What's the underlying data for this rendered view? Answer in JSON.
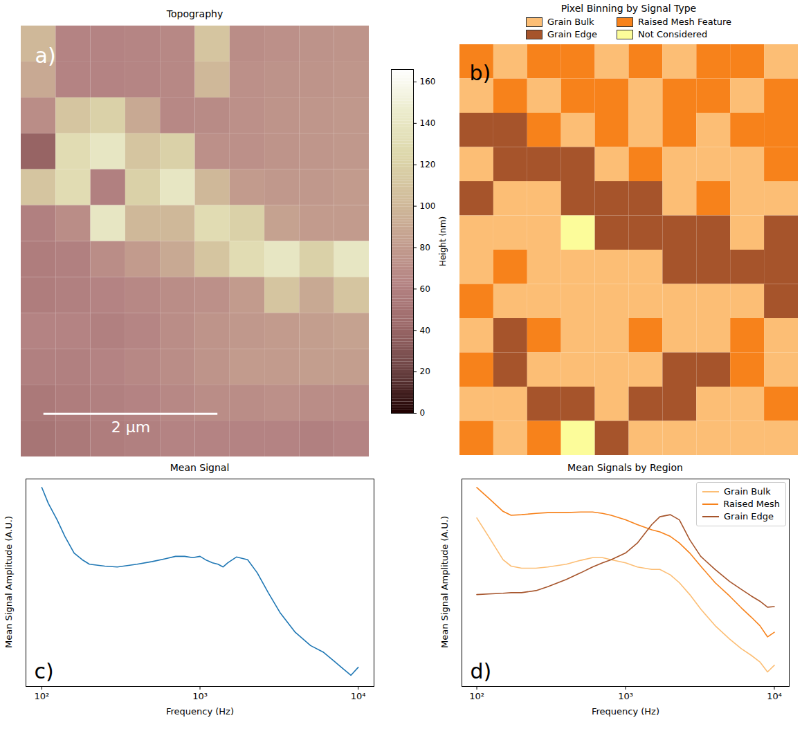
{
  "chart_data": [
    {
      "type": "heatmap",
      "panel_label": "a)",
      "title": "Topography",
      "xlim": [
        0,
        4
      ],
      "ylim": [
        0,
        5
      ],
      "tick_labels": false,
      "cells": [
        [
          100,
          62,
          62,
          64,
          66,
          110,
          70,
          72,
          74,
          75
        ],
        [
          90,
          62,
          62,
          64,
          66,
          100,
          72,
          74,
          75,
          76
        ],
        [
          70,
          110,
          120,
          90,
          66,
          68,
          72,
          75,
          76,
          78
        ],
        [
          40,
          130,
          140,
          110,
          120,
          72,
          72,
          75,
          76,
          78
        ],
        [
          110,
          130,
          60,
          120,
          140,
          100,
          80,
          78,
          78,
          80
        ],
        [
          60,
          70,
          140,
          100,
          100,
          130,
          120,
          85,
          80,
          80
        ],
        [
          58,
          60,
          70,
          80,
          90,
          110,
          130,
          140,
          120,
          140
        ],
        [
          58,
          60,
          62,
          66,
          70,
          72,
          80,
          110,
          90,
          110
        ],
        [
          62,
          62,
          60,
          64,
          70,
          75,
          78,
          80,
          82,
          85
        ],
        [
          60,
          60,
          62,
          66,
          70,
          75,
          80,
          80,
          82,
          82
        ],
        [
          55,
          58,
          60,
          62,
          66,
          70,
          70,
          72,
          70,
          70
        ],
        [
          52,
          55,
          58,
          60,
          62,
          62,
          62,
          62,
          60,
          62
        ]
      ],
      "colorbar": {
        "label": "Height (nm)",
        "range": [
          0,
          166
        ],
        "ticks": [
          0,
          20,
          40,
          60,
          80,
          100,
          120,
          140,
          160
        ]
      },
      "scale_bar": {
        "value": 2,
        "label": "2 μm"
      }
    },
    {
      "type": "heatmap",
      "panel_label": "b)",
      "title": "Pixel Binning by Signal Type",
      "tick_labels": false,
      "categories": [
        "Grain Bulk",
        "Raised Mesh Feature",
        "Grain Edge",
        "Not Considered"
      ],
      "colors": [
        "#fcbe75",
        "#f7821b",
        "#a6542b",
        "#fcfc9a"
      ],
      "legend": "top",
      "cells": [
        [
          1,
          0,
          1,
          1,
          0,
          1,
          0,
          1,
          1,
          0
        ],
        [
          0,
          1,
          0,
          1,
          1,
          0,
          1,
          1,
          0,
          1
        ],
        [
          2,
          2,
          1,
          0,
          1,
          0,
          1,
          0,
          1,
          1
        ],
        [
          0,
          2,
          2,
          2,
          0,
          1,
          0,
          0,
          0,
          1
        ],
        [
          2,
          0,
          0,
          2,
          2,
          2,
          0,
          1,
          0,
          0
        ],
        [
          0,
          0,
          0,
          3,
          2,
          2,
          2,
          2,
          0,
          2
        ],
        [
          0,
          1,
          0,
          0,
          0,
          0,
          2,
          2,
          2,
          2
        ],
        [
          1,
          0,
          0,
          0,
          0,
          0,
          0,
          0,
          0,
          2
        ],
        [
          0,
          2,
          1,
          0,
          0,
          1,
          0,
          0,
          1,
          0
        ],
        [
          1,
          2,
          0,
          0,
          0,
          0,
          2,
          2,
          1,
          0
        ],
        [
          0,
          0,
          2,
          2,
          0,
          2,
          2,
          0,
          0,
          1
        ],
        [
          1,
          0,
          1,
          3,
          2,
          0,
          0,
          0,
          0,
          0
        ]
      ]
    },
    {
      "type": "line",
      "panel_label": "c)",
      "title": "Mean Signal",
      "xlabel": "Frequency (Hz)",
      "ylabel": "Mean Signal Amplitude (A.U.)",
      "log": "x",
      "xlim": [
        79.4,
        12589
      ],
      "ylim": [
        0,
        100
      ],
      "tick_labels": "x",
      "xticks": [
        {
          "value": 100,
          "label": "10²"
        },
        {
          "value": 1000,
          "label": "10³"
        },
        {
          "value": 10000,
          "label": "10⁴"
        }
      ],
      "x": [
        100,
        110,
        125,
        140,
        160,
        180,
        200,
        250,
        300,
        400,
        500,
        600,
        700,
        800,
        900,
        1000,
        1100,
        1200,
        1300,
        1400,
        1500,
        1700,
        2000,
        2300,
        2700,
        3200,
        4000,
        5000,
        6000,
        7000,
        8000,
        9000,
        10000
      ],
      "values": [
        95.9,
        88.2,
        80.3,
        72.3,
        64.3,
        61.1,
        58.9,
        58.0,
        57.6,
        58.9,
        60.2,
        61.5,
        62.7,
        62.7,
        62.1,
        62.7,
        60.8,
        59.6,
        58.9,
        57.6,
        59.6,
        62.4,
        61.1,
        54.8,
        45.2,
        35.7,
        26.1,
        19.7,
        16.6,
        12.4,
        8.6,
        5.4,
        9.2
      ],
      "color": "#1f77b4"
    },
    {
      "type": "line",
      "panel_label": "d)",
      "title": "Mean Signals by Region",
      "xlabel": "Frequency (Hz)",
      "ylabel": "Mean Signal Amplitude (A.U.)",
      "log": "x",
      "xlim": [
        79.4,
        12589
      ],
      "ylim": [
        0,
        100
      ],
      "tick_labels": "x",
      "legend": "upper right",
      "xticks": [
        {
          "value": 100,
          "label": "10²"
        },
        {
          "value": 1000,
          "label": "10³"
        },
        {
          "value": 10000,
          "label": "10⁴"
        }
      ],
      "x": [
        100,
        120,
        150,
        170,
        200,
        250,
        300,
        400,
        500,
        600,
        700,
        800,
        1000,
        1200,
        1500,
        1700,
        2000,
        2300,
        2700,
        3200,
        4000,
        5000,
        6000,
        7000,
        8000,
        9000,
        10000
      ],
      "series": [
        {
          "name": "Grain Bulk",
          "color": "#fcbe75",
          "values": [
            81.2,
            72.3,
            61.1,
            58.0,
            57.0,
            57.0,
            57.6,
            58.9,
            60.8,
            62.1,
            62.1,
            61.1,
            59.6,
            57.6,
            56.4,
            56.4,
            53.8,
            50.0,
            44.3,
            37.3,
            29.3,
            22.9,
            18.2,
            15.0,
            11.8,
            7.0,
            10.2
          ]
        },
        {
          "name": "Raised Mesh",
          "color": "#f7821b",
          "values": [
            95.9,
            90.8,
            84.4,
            82.5,
            82.8,
            83.4,
            83.8,
            83.8,
            84.1,
            84.1,
            83.4,
            82.5,
            80.3,
            78.0,
            75.5,
            74.5,
            72.3,
            69.1,
            64.3,
            58.0,
            50.0,
            43.6,
            37.9,
            33.4,
            29.3,
            23.9,
            26.1
          ]
        },
        {
          "name": "Grain Edge",
          "color": "#a6542b",
          "values": [
            44.3,
            44.6,
            44.9,
            45.2,
            45.2,
            46.2,
            48.1,
            51.6,
            54.8,
            57.6,
            59.6,
            61.1,
            64.3,
            69.1,
            78.0,
            81.8,
            82.8,
            80.3,
            70.7,
            62.7,
            56.4,
            50.6,
            46.8,
            43.6,
            41.1,
            38.2,
            38.5
          ]
        }
      ]
    }
  ]
}
